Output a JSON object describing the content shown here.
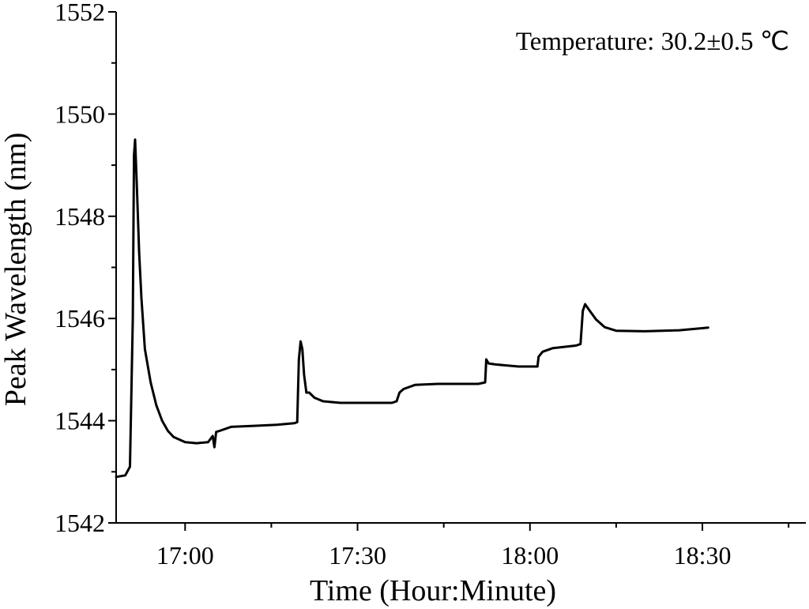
{
  "chart_data": {
    "type": "line",
    "title": "",
    "xlabel": "Time (Hour:Minute)",
    "ylabel": "Peak Wavelength (nm)",
    "annotation": "Temperature: 30.2±0.5 ℃",
    "xlim": [
      "16:48",
      "18:48"
    ],
    "ylim": [
      1542,
      1552
    ],
    "x_ticks": [
      "17:00",
      "17:30",
      "18:00",
      "18:30"
    ],
    "y_ticks": [
      "1542",
      "1544",
      "1546",
      "1548",
      "1550",
      "1552"
    ],
    "grid": false,
    "legend": "none",
    "series": [
      {
        "color": "#000000",
        "points": [
          [
            "16:48:00",
            1542.9
          ],
          [
            "16:49:36",
            1542.93
          ],
          [
            "16:50:24",
            1543.1
          ],
          [
            "16:50:54",
            1546.0
          ],
          [
            "16:51:06",
            1549.2
          ],
          [
            "16:51:18",
            1549.5
          ],
          [
            "16:51:36",
            1548.6
          ],
          [
            "16:52:00",
            1547.3
          ],
          [
            "16:52:24",
            1546.4
          ],
          [
            "16:53:00",
            1545.4
          ],
          [
            "16:54:00",
            1544.75
          ],
          [
            "16:55:00",
            1544.3
          ],
          [
            "16:56:00",
            1544.0
          ],
          [
            "16:57:00",
            1543.8
          ],
          [
            "16:58:00",
            1543.68
          ],
          [
            "17:00:00",
            1543.58
          ],
          [
            "17:02:00",
            1543.56
          ],
          [
            "17:04:00",
            1543.58
          ],
          [
            "17:04:48",
            1543.7
          ],
          [
            "17:05:06",
            1543.48
          ],
          [
            "17:05:24",
            1543.78
          ],
          [
            "17:06:00",
            1543.8
          ],
          [
            "17:08:00",
            1543.88
          ],
          [
            "17:12:00",
            1543.9
          ],
          [
            "17:16:00",
            1543.92
          ],
          [
            "17:19:00",
            1543.95
          ],
          [
            "17:19:30",
            1543.97
          ],
          [
            "17:19:48",
            1545.2
          ],
          [
            "17:20:06",
            1545.55
          ],
          [
            "17:20:24",
            1545.4
          ],
          [
            "17:20:42",
            1544.9
          ],
          [
            "17:21:06",
            1544.55
          ],
          [
            "17:21:36",
            1544.55
          ],
          [
            "17:22:30",
            1544.45
          ],
          [
            "17:24:00",
            1544.38
          ],
          [
            "17:27:00",
            1544.35
          ],
          [
            "17:32:00",
            1544.35
          ],
          [
            "17:36:00",
            1544.35
          ],
          [
            "17:36:48",
            1544.38
          ],
          [
            "17:37:18",
            1544.55
          ],
          [
            "17:38:00",
            1544.62
          ],
          [
            "17:40:00",
            1544.7
          ],
          [
            "17:44:00",
            1544.72
          ],
          [
            "17:51:00",
            1544.72
          ],
          [
            "17:52:12",
            1544.75
          ],
          [
            "17:52:24",
            1545.2
          ],
          [
            "17:52:48",
            1545.12
          ],
          [
            "17:54:00",
            1545.1
          ],
          [
            "17:58:00",
            1545.06
          ],
          [
            "18:01:18",
            1545.06
          ],
          [
            "18:01:30",
            1545.25
          ],
          [
            "18:02:12",
            1545.35
          ],
          [
            "18:04:00",
            1545.42
          ],
          [
            "18:08:00",
            1545.47
          ],
          [
            "18:08:48",
            1545.5
          ],
          [
            "18:09:12",
            1546.15
          ],
          [
            "18:09:36",
            1546.28
          ],
          [
            "18:10:24",
            1546.15
          ],
          [
            "18:11:30",
            1545.98
          ],
          [
            "18:13:00",
            1545.83
          ],
          [
            "18:15:00",
            1545.76
          ],
          [
            "18:20:00",
            1545.75
          ],
          [
            "18:26:00",
            1545.77
          ],
          [
            "18:31:00",
            1545.82
          ]
        ]
      }
    ]
  }
}
